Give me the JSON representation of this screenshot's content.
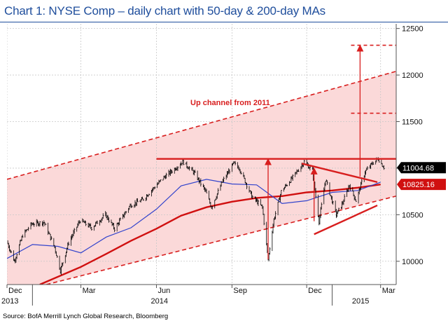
{
  "title": "Chart 1: NYSE Comp – daily chart with 50-day & 200-day MAs",
  "source": "Source: BofA Merrill Lynch Global Research, Bloomberg",
  "colors": {
    "price": "#000000",
    "ma50": "#3344cc",
    "ma200": "#d01010",
    "channel_fill": "#fbd9d9",
    "annotation": "#d81e1e",
    "title": "#1f4e9c",
    "grid": "#c8c8c8"
  },
  "chart_data": {
    "type": "line",
    "title": "Chart 1: NYSE Comp – daily chart with 50-day & 200-day MAs",
    "y_axis": {
      "position": "right",
      "ylim": [
        9750,
        12550
      ],
      "ticks": [
        10000,
        10500,
        11000,
        11500,
        12000,
        12500
      ]
    },
    "x_axis": {
      "range": [
        "2013-12-01",
        "2015-03-20"
      ],
      "month_ticks": [
        {
          "date": "2013-12-01",
          "label": "Dec"
        },
        {
          "date": "2014-03-01",
          "label": "Mar"
        },
        {
          "date": "2014-06-01",
          "label": "Jun"
        },
        {
          "date": "2014-09-01",
          "label": "Sep"
        },
        {
          "date": "2014-12-01",
          "label": "Dec"
        },
        {
          "date": "2015-03-01",
          "label": "Mar"
        }
      ],
      "year_labels": [
        {
          "date": "2013-12-01",
          "label": "2013"
        },
        {
          "date": "2014-06-01",
          "label": "2014"
        },
        {
          "date": "2015-02-01",
          "label": "2015"
        }
      ]
    },
    "series": [
      {
        "key": "price",
        "style": "bars",
        "points": [
          [
            "2013-12-01",
            10210
          ],
          [
            "2013-12-10",
            10000
          ],
          [
            "2013-12-20",
            10280
          ],
          [
            "2013-12-31",
            10400
          ],
          [
            "2014-01-15",
            10420
          ],
          [
            "2014-01-28",
            10150
          ],
          [
            "2014-02-04",
            9900
          ],
          [
            "2014-02-14",
            10200
          ],
          [
            "2014-02-28",
            10440
          ],
          [
            "2014-03-14",
            10360
          ],
          [
            "2014-03-31",
            10500
          ],
          [
            "2014-04-11",
            10350
          ],
          [
            "2014-04-30",
            10600
          ],
          [
            "2014-05-15",
            10660
          ],
          [
            "2014-05-30",
            10800
          ],
          [
            "2014-06-10",
            10900
          ],
          [
            "2014-06-24",
            11000
          ],
          [
            "2014-07-03",
            11070
          ],
          [
            "2014-07-17",
            10950
          ],
          [
            "2014-07-31",
            10750
          ],
          [
            "2014-08-07",
            10580
          ],
          [
            "2014-08-20",
            10850
          ],
          [
            "2014-09-03",
            11050
          ],
          [
            "2014-09-10",
            11000
          ],
          [
            "2014-09-25",
            10700
          ],
          [
            "2014-10-08",
            10580
          ],
          [
            "2014-10-15",
            10020
          ],
          [
            "2014-10-22",
            10450
          ],
          [
            "2014-10-31",
            10750
          ],
          [
            "2014-11-14",
            10900
          ],
          [
            "2014-11-28",
            11070
          ],
          [
            "2014-12-08",
            10970
          ],
          [
            "2014-12-16",
            10430
          ],
          [
            "2014-12-24",
            10880
          ],
          [
            "2015-01-06",
            10500
          ],
          [
            "2015-01-14",
            10630
          ],
          [
            "2015-01-22",
            10820
          ],
          [
            "2015-01-30",
            10650
          ],
          [
            "2015-02-10",
            10960
          ],
          [
            "2015-02-20",
            11060
          ],
          [
            "2015-02-26",
            11100
          ],
          [
            "2015-03-05",
            11010
          ]
        ]
      },
      {
        "key": "ma50",
        "style": "line",
        "points": [
          [
            "2013-12-01",
            10030
          ],
          [
            "2014-01-01",
            10180
          ],
          [
            "2014-02-01",
            10160
          ],
          [
            "2014-03-01",
            10090
          ],
          [
            "2014-04-01",
            10260
          ],
          [
            "2014-05-01",
            10360
          ],
          [
            "2014-06-01",
            10560
          ],
          [
            "2014-07-01",
            10810
          ],
          [
            "2014-08-01",
            10880
          ],
          [
            "2014-09-01",
            10830
          ],
          [
            "2014-10-01",
            10820
          ],
          [
            "2014-11-01",
            10620
          ],
          [
            "2014-12-01",
            10650
          ],
          [
            "2015-01-01",
            10740
          ],
          [
            "2015-02-01",
            10760
          ],
          [
            "2015-03-01",
            10850
          ]
        ]
      },
      {
        "key": "ma200",
        "style": "line",
        "points": [
          [
            "2014-01-10",
            9750
          ],
          [
            "2014-03-01",
            9940
          ],
          [
            "2014-04-01",
            10080
          ],
          [
            "2014-05-01",
            10220
          ],
          [
            "2014-06-01",
            10350
          ],
          [
            "2014-07-01",
            10490
          ],
          [
            "2014-08-01",
            10580
          ],
          [
            "2014-09-01",
            10640
          ],
          [
            "2014-10-01",
            10680
          ],
          [
            "2014-11-01",
            10700
          ],
          [
            "2014-12-01",
            10740
          ],
          [
            "2015-01-01",
            10760
          ],
          [
            "2015-02-01",
            10790
          ],
          [
            "2015-03-01",
            10825
          ]
        ]
      }
    ],
    "last_values": [
      {
        "series": "price",
        "label": "11004.68",
        "value": 11004.68
      },
      {
        "series": "ma200",
        "label": "10825.16",
        "value": 10825.16
      }
    ],
    "annotations": {
      "channel_label": "Up channel from 2011",
      "channel_upper": [
        [
          "2013-12-01",
          10880
        ],
        [
          "2015-03-20",
          12040
        ]
      ],
      "channel_lower": [
        [
          "2014-01-18",
          9750
        ],
        [
          "2015-03-20",
          10700
        ]
      ],
      "resistance": [
        [
          "2014-06-01",
          11100
        ],
        [
          "2015-03-20",
          11100
        ]
      ],
      "triangle_top": [
        [
          "2014-11-25",
          11050
        ],
        [
          "2015-02-25",
          10850
        ]
      ],
      "triangle_bottom": [
        [
          "2014-12-10",
          10290
        ],
        [
          "2015-02-25",
          10600
        ]
      ],
      "arrows": [
        {
          "date": "2014-10-15",
          "from": 10020,
          "to": 11100
        },
        {
          "date": "2014-12-10",
          "from": 10430,
          "to": 11000
        },
        {
          "date": "2015-02-04",
          "from": 10910,
          "to": 12320
        }
      ],
      "target_levels": [
        {
          "from": "2015-01-24",
          "to": "2015-03-20",
          "value": 11590
        },
        {
          "from": "2015-01-24",
          "to": "2015-03-20",
          "value": 12320
        }
      ]
    }
  }
}
